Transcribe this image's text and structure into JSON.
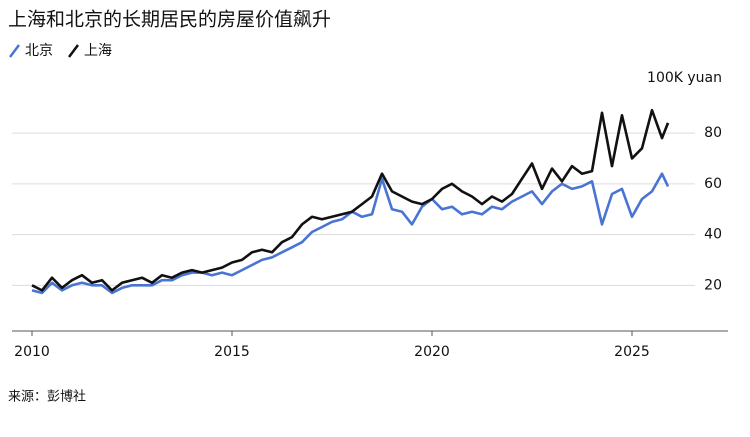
{
  "chart_data": {
    "type": "line",
    "title": "上海和北京的长期居民的房屋价值飙升",
    "y_label": "100K yuan",
    "source": "来源：彭博社",
    "x": [
      2010,
      2010.25,
      2010.5,
      2010.75,
      2011,
      2011.25,
      2011.5,
      2011.75,
      2012,
      2012.25,
      2012.5,
      2012.75,
      2013,
      2013.25,
      2013.5,
      2013.75,
      2014,
      2014.25,
      2014.5,
      2014.75,
      2015,
      2015.25,
      2015.5,
      2015.75,
      2016,
      2016.25,
      2016.5,
      2016.75,
      2017,
      2017.25,
      2017.5,
      2017.75,
      2018,
      2018.25,
      2018.5,
      2018.75,
      2019,
      2019.25,
      2019.5,
      2019.75,
      2020,
      2020.25,
      2020.5,
      2020.75,
      2021,
      2021.25,
      2021.5,
      2021.75,
      2022,
      2022.25,
      2022.5,
      2022.75,
      2023,
      2023.25,
      2023.5,
      2023.75,
      2024,
      2024.25,
      2024.5,
      2024.75,
      2025,
      2025.25,
      2025.5,
      2025.75,
      2025.9
    ],
    "series": [
      {
        "name": "北京",
        "color": "#4a74d4",
        "values": [
          18,
          17,
          21,
          18,
          20,
          21,
          20,
          20,
          17,
          19,
          20,
          20,
          20,
          22,
          22,
          24,
          25,
          25,
          24,
          25,
          24,
          26,
          28,
          30,
          31,
          33,
          35,
          37,
          41,
          43,
          45,
          46,
          49,
          47,
          48,
          62,
          50,
          49,
          44,
          51,
          54,
          50,
          51,
          48,
          49,
          48,
          51,
          50,
          53,
          55,
          57,
          52,
          57,
          60,
          58,
          59,
          61,
          44,
          56,
          58,
          47,
          54,
          57,
          64,
          59
        ]
      },
      {
        "name": "上海",
        "color": "#111111",
        "values": [
          20,
          18,
          23,
          19,
          22,
          24,
          21,
          22,
          18,
          21,
          22,
          23,
          21,
          24,
          23,
          25,
          26,
          25,
          26,
          27,
          29,
          30,
          33,
          34,
          33,
          37,
          39,
          44,
          47,
          46,
          47,
          48,
          49,
          52,
          55,
          64,
          57,
          55,
          53,
          52,
          54,
          58,
          60,
          57,
          55,
          52,
          55,
          53,
          56,
          62,
          68,
          58,
          66,
          61,
          67,
          64,
          65,
          88,
          67,
          87,
          70,
          74,
          89,
          78,
          84
        ]
      }
    ],
    "xlim": [
      2009.5,
      2027.4
    ],
    "xticks": [
      2010,
      2015,
      2020,
      2025
    ],
    "ylim": [
      2,
      95
    ],
    "yticks": [
      20,
      40,
      60,
      80
    ],
    "grid": true
  }
}
